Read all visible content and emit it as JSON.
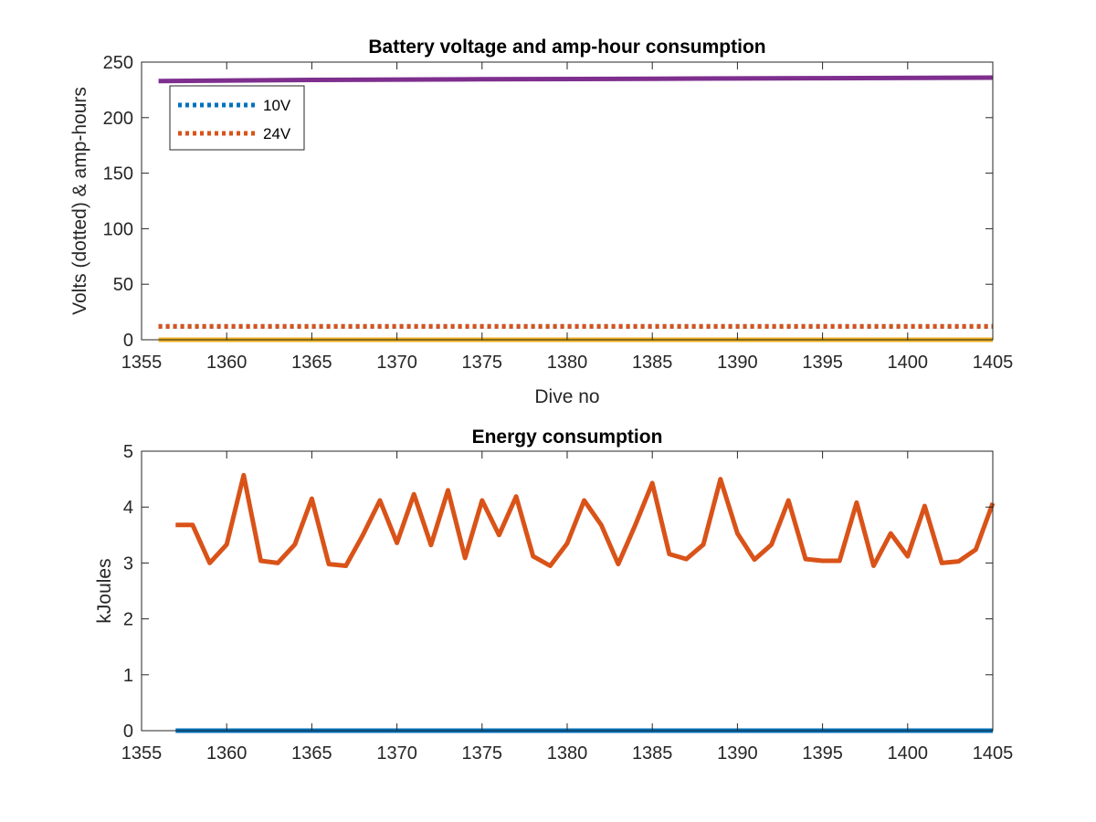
{
  "chart_data": [
    {
      "type": "line",
      "title": "Battery voltage and amp-hour consumption",
      "xlabel": "Dive no",
      "ylabel": "Volts (dotted) & amp-hours",
      "xlim": [
        1355,
        1405
      ],
      "ylim": [
        0,
        250
      ],
      "xticks": [
        1355,
        1360,
        1365,
        1370,
        1375,
        1380,
        1385,
        1390,
        1395,
        1400,
        1405
      ],
      "yticks": [
        0,
        50,
        100,
        150,
        200,
        250
      ],
      "grid": false,
      "legend_position": "top-left",
      "series": [
        {
          "name": "10V",
          "style": "dotted",
          "color": "#0072BD",
          "x": [
            1356,
            1405
          ],
          "y": [
            12,
            12
          ]
        },
        {
          "name": "24V",
          "style": "dotted",
          "color": "#D95319",
          "x": [
            1356,
            1405
          ],
          "y": [
            12,
            12
          ]
        },
        {
          "style": "solid",
          "color": "#EDB120",
          "x": [
            1356,
            1405
          ],
          "y": [
            0,
            0
          ]
        },
        {
          "style": "solid",
          "color": "#7E2F8E",
          "x": [
            1356,
            1365,
            1375,
            1385,
            1395,
            1405
          ],
          "y": [
            233,
            234,
            234.5,
            235,
            235.5,
            236
          ]
        }
      ]
    },
    {
      "type": "line",
      "title": "Energy consumption",
      "xlabel": "",
      "ylabel": "kJoules",
      "xlim": [
        1355,
        1405
      ],
      "ylim": [
        0,
        5
      ],
      "xticks": [
        1355,
        1360,
        1365,
        1370,
        1375,
        1380,
        1385,
        1390,
        1395,
        1400,
        1405
      ],
      "yticks": [
        0,
        1,
        2,
        3,
        4,
        5
      ],
      "grid": false,
      "series": [
        {
          "style": "solid",
          "color": "#0072BD",
          "x": [
            1357,
            1405
          ],
          "y": [
            0,
            0
          ]
        },
        {
          "style": "solid",
          "color": "#D95319",
          "x": [
            1357,
            1358,
            1359,
            1360,
            1361,
            1362,
            1363,
            1364,
            1365,
            1366,
            1367,
            1368,
            1369,
            1370,
            1371,
            1372,
            1373,
            1374,
            1375,
            1376,
            1377,
            1378,
            1379,
            1380,
            1381,
            1382,
            1383,
            1384,
            1385,
            1386,
            1387,
            1388,
            1389,
            1390,
            1391,
            1392,
            1393,
            1394,
            1395,
            1396,
            1397,
            1398,
            1399,
            1400,
            1401,
            1402,
            1403,
            1404,
            1405
          ],
          "y": [
            3.68,
            3.68,
            3.0,
            3.33,
            4.57,
            3.04,
            3.0,
            3.33,
            4.15,
            2.98,
            2.95,
            3.5,
            4.12,
            3.36,
            4.23,
            3.32,
            4.3,
            3.09,
            4.12,
            3.5,
            4.19,
            3.12,
            2.95,
            3.35,
            4.12,
            3.68,
            2.98,
            3.68,
            4.43,
            3.16,
            3.07,
            3.33,
            4.5,
            3.53,
            3.06,
            3.33,
            4.12,
            3.07,
            3.04,
            3.04,
            4.08,
            2.95,
            3.53,
            3.12,
            4.02,
            3.0,
            3.03,
            3.24,
            4.07
          ]
        }
      ]
    }
  ]
}
